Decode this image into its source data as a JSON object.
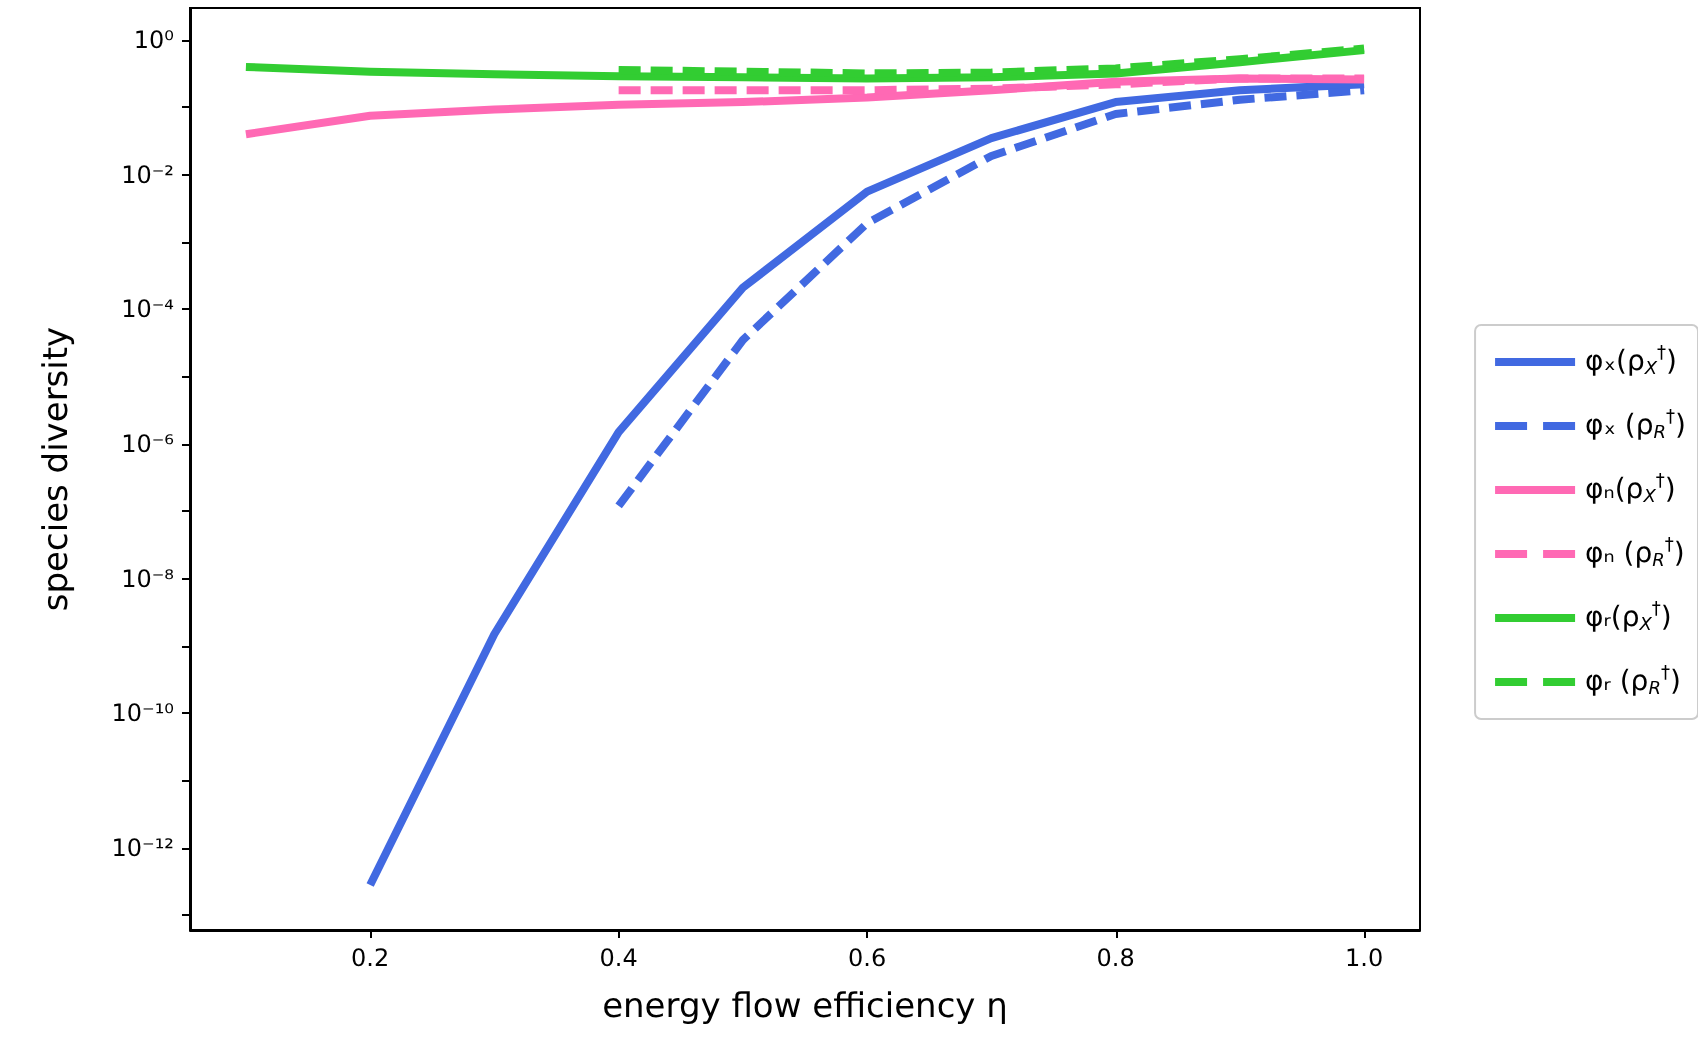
{
  "chart_data": {
    "type": "line",
    "xlabel": "energy flow efficiency η",
    "ylabel": "species diversity",
    "log": "y",
    "grid": false,
    "legend": "right",
    "marker": "none",
    "xlim": [
      0.055,
      1.045
    ],
    "xticks": [
      0.2,
      0.4,
      0.6,
      0.8,
      {
        "value": 1.0,
        "label": "1.0"
      }
    ],
    "ylim": [
      6e-14,
      3
    ],
    "yticks": [
      {
        "value": 1e-13,
        "label": null
      },
      {
        "value": 1e-12,
        "label": "10⁻¹²"
      },
      {
        "value": 1e-11,
        "label": null
      },
      {
        "value": 1e-10,
        "label": "10⁻¹⁰"
      },
      {
        "value": 1e-09,
        "label": null
      },
      {
        "value": 1e-08,
        "label": "10⁻⁸"
      },
      {
        "value": 1e-07,
        "label": null
      },
      {
        "value": 1e-06,
        "label": "10⁻⁶"
      },
      {
        "value": 1e-05,
        "label": null
      },
      {
        "value": 0.0001,
        "label": "10⁻⁴"
      },
      {
        "value": 0.001,
        "label": null
      },
      {
        "value": 0.01,
        "label": "10⁻²"
      },
      {
        "value": 0.1,
        "label": null
      },
      {
        "value": 1,
        "label": "10⁰"
      }
    ],
    "series": [
      {
        "name": "φₓ(ρ$_{X}$$^{†}$)",
        "color": "#4169e1",
        "line_style": "solid",
        "x": [
          0.2,
          0.3,
          0.4,
          0.5,
          0.6,
          0.7,
          0.8,
          0.9,
          1.0
        ],
        "values": [
          2.8e-13,
          1.5e-09,
          1.5e-06,
          0.00021,
          0.0056,
          0.035,
          0.12,
          0.18,
          0.22
        ]
      },
      {
        "name": "φₓ (ρ$_{R}$$^{†}$)",
        "color": "#4169e1",
        "line_style": "dashed",
        "x": [
          0.4,
          0.5,
          0.6,
          0.7,
          0.8,
          0.9,
          1.0
        ],
        "values": [
          1.2e-07,
          3.5e-05,
          0.0019,
          0.019,
          0.08,
          0.13,
          0.18
        ]
      },
      {
        "name": "φₙ(ρ$_{X}$$^{†}$)",
        "color": "#ff69b4",
        "line_style": "solid",
        "x": [
          0.1,
          0.2,
          0.3,
          0.4,
          0.5,
          0.6,
          0.7,
          0.8,
          0.9,
          1.0
        ],
        "values": [
          0.04,
          0.075,
          0.093,
          0.11,
          0.12,
          0.14,
          0.18,
          0.24,
          0.27,
          0.26
        ]
      },
      {
        "name": "φₙ (ρ$_{R}$$^{†}$)",
        "color": "#ff69b4",
        "line_style": "dashed",
        "x": [
          0.4,
          0.5,
          0.6,
          0.7,
          0.8,
          0.9,
          1.0
        ],
        "values": [
          0.18,
          0.18,
          0.18,
          0.19,
          0.22,
          0.27,
          0.27
        ]
      },
      {
        "name": "φᵣ(ρ$_{X}$$^{†}$)",
        "color": "#32cd32",
        "line_style": "solid",
        "x": [
          0.1,
          0.2,
          0.3,
          0.4,
          0.5,
          0.6,
          0.7,
          0.8,
          0.9,
          1.0
        ],
        "values": [
          0.4,
          0.34,
          0.31,
          0.29,
          0.28,
          0.27,
          0.28,
          0.32,
          0.47,
          0.71
        ]
      },
      {
        "name": "φᵣ (ρ$_{R}$$^{†}$)",
        "color": "#32cd32",
        "line_style": "dashed",
        "x": [
          0.4,
          0.5,
          0.6,
          0.7,
          0.8,
          0.9,
          1.0
        ],
        "values": [
          0.36,
          0.34,
          0.32,
          0.33,
          0.38,
          0.52,
          0.75
        ]
      }
    ]
  }
}
